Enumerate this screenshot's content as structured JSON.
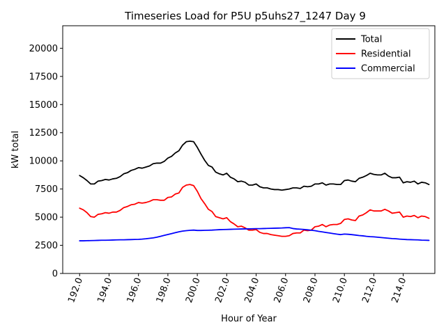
{
  "chart_data": {
    "type": "line",
    "title": "Timeseries Load for P5U p5uhs27_1247  Day 9",
    "xlabel": "Hour of Year",
    "ylabel": "kW total",
    "xlim": [
      190.85,
      216.15
    ],
    "ylim": [
      0,
      22000
    ],
    "x_ticks": [
      192,
      194,
      196,
      198,
      200,
      202,
      204,
      206,
      208,
      210,
      212,
      214
    ],
    "x_tick_labels": [
      "192.0",
      "194.0",
      "196.0",
      "198.0",
      "200.0",
      "202.0",
      "204.0",
      "206.0",
      "208.0",
      "210.0",
      "212.0",
      "214.0"
    ],
    "y_ticks": [
      0,
      2500,
      5000,
      7500,
      10000,
      12500,
      15000,
      17500,
      20000
    ],
    "y_tick_labels": [
      "0",
      "2500",
      "5000",
      "7500",
      "10000",
      "12500",
      "15000",
      "17500",
      "20000"
    ],
    "legend_position": "top-right",
    "x": [
      192.0,
      192.25,
      192.5,
      192.75,
      193.0,
      193.25,
      193.5,
      193.75,
      194.0,
      194.25,
      194.5,
      194.75,
      195.0,
      195.25,
      195.5,
      195.75,
      196.0,
      196.25,
      196.5,
      196.75,
      197.0,
      197.25,
      197.5,
      197.75,
      198.0,
      198.25,
      198.5,
      198.75,
      199.0,
      199.25,
      199.5,
      199.75,
      200.0,
      200.25,
      200.5,
      200.75,
      201.0,
      201.25,
      201.5,
      201.75,
      202.0,
      202.25,
      202.5,
      202.75,
      203.0,
      203.25,
      203.5,
      203.75,
      204.0,
      204.25,
      204.5,
      204.75,
      205.0,
      205.25,
      205.5,
      205.75,
      206.0,
      206.25,
      206.5,
      206.75,
      207.0,
      207.25,
      207.5,
      207.75,
      208.0,
      208.25,
      208.5,
      208.75,
      209.0,
      209.25,
      209.5,
      209.75,
      210.0,
      210.25,
      210.5,
      210.75,
      211.0,
      211.25,
      211.5,
      211.75,
      212.0,
      212.25,
      212.5,
      212.75,
      213.0,
      213.25,
      213.5,
      213.75,
      214.0,
      214.25,
      214.5,
      214.75,
      215.0,
      215.25,
      215.5,
      215.75
    ],
    "series": [
      {
        "name": "Total",
        "color": "#000000",
        "values": [
          8700,
          8500,
          8250,
          7950,
          7950,
          8200,
          8250,
          8350,
          8300,
          8400,
          8450,
          8600,
          8850,
          8950,
          9150,
          9250,
          9400,
          9350,
          9450,
          9550,
          9750,
          9800,
          9800,
          9950,
          10250,
          10400,
          10700,
          10900,
          11400,
          11700,
          11750,
          11700,
          11200,
          10600,
          10050,
          9600,
          9450,
          9000,
          8850,
          8750,
          8900,
          8550,
          8400,
          8150,
          8200,
          8100,
          7850,
          7850,
          7950,
          7700,
          7600,
          7600,
          7500,
          7450,
          7450,
          7400,
          7450,
          7500,
          7600,
          7600,
          7550,
          7750,
          7700,
          7750,
          7950,
          7950,
          8050,
          7850,
          7950,
          7950,
          7900,
          7900,
          8250,
          8300,
          8200,
          8150,
          8450,
          8550,
          8700,
          8900,
          8800,
          8750,
          8750,
          8900,
          8650,
          8500,
          8500,
          8550,
          8050,
          8150,
          8100,
          8200,
          7950,
          8100,
          8050,
          7900
        ]
      },
      {
        "name": "Residential",
        "color": "#ff0000",
        "values": [
          5800,
          5650,
          5400,
          5050,
          5000,
          5250,
          5300,
          5400,
          5350,
          5450,
          5450,
          5600,
          5850,
          5950,
          6100,
          6150,
          6300,
          6250,
          6300,
          6400,
          6550,
          6550,
          6500,
          6500,
          6750,
          6800,
          7050,
          7150,
          7650,
          7850,
          7900,
          7800,
          7300,
          6650,
          6200,
          5700,
          5500,
          5050,
          4950,
          4850,
          4950,
          4600,
          4400,
          4150,
          4200,
          4050,
          3850,
          3850,
          3900,
          3650,
          3550,
          3550,
          3450,
          3400,
          3350,
          3300,
          3300,
          3350,
          3550,
          3600,
          3600,
          3850,
          3800,
          3850,
          4150,
          4200,
          4350,
          4150,
          4300,
          4350,
          4350,
          4450,
          4800,
          4850,
          4750,
          4700,
          5100,
          5200,
          5400,
          5650,
          5550,
          5550,
          5550,
          5700,
          5550,
          5350,
          5400,
          5450,
          5000,
          5100,
          5050,
          5150,
          4950,
          5100,
          5050,
          4900
        ]
      },
      {
        "name": "Commercial",
        "color": "#0000ff",
        "values": [
          2900,
          2900,
          2910,
          2920,
          2930,
          2940,
          2950,
          2950,
          2960,
          2970,
          2980,
          2990,
          2990,
          3000,
          3010,
          3020,
          3030,
          3050,
          3080,
          3120,
          3160,
          3220,
          3300,
          3380,
          3460,
          3540,
          3620,
          3700,
          3760,
          3800,
          3830,
          3850,
          3820,
          3820,
          3830,
          3840,
          3850,
          3870,
          3890,
          3900,
          3910,
          3920,
          3930,
          3940,
          3950,
          3960,
          3960,
          3970,
          3980,
          3980,
          3990,
          4000,
          4010,
          4020,
          4030,
          4040,
          4060,
          4070,
          3990,
          3950,
          3930,
          3910,
          3880,
          3840,
          3800,
          3740,
          3690,
          3640,
          3590,
          3540,
          3490,
          3450,
          3500,
          3480,
          3450,
          3410,
          3370,
          3340,
          3300,
          3270,
          3250,
          3220,
          3190,
          3160,
          3130,
          3100,
          3080,
          3050,
          3030,
          3010,
          3000,
          2990,
          2980,
          2960,
          2950,
          2940
        ]
      }
    ]
  }
}
